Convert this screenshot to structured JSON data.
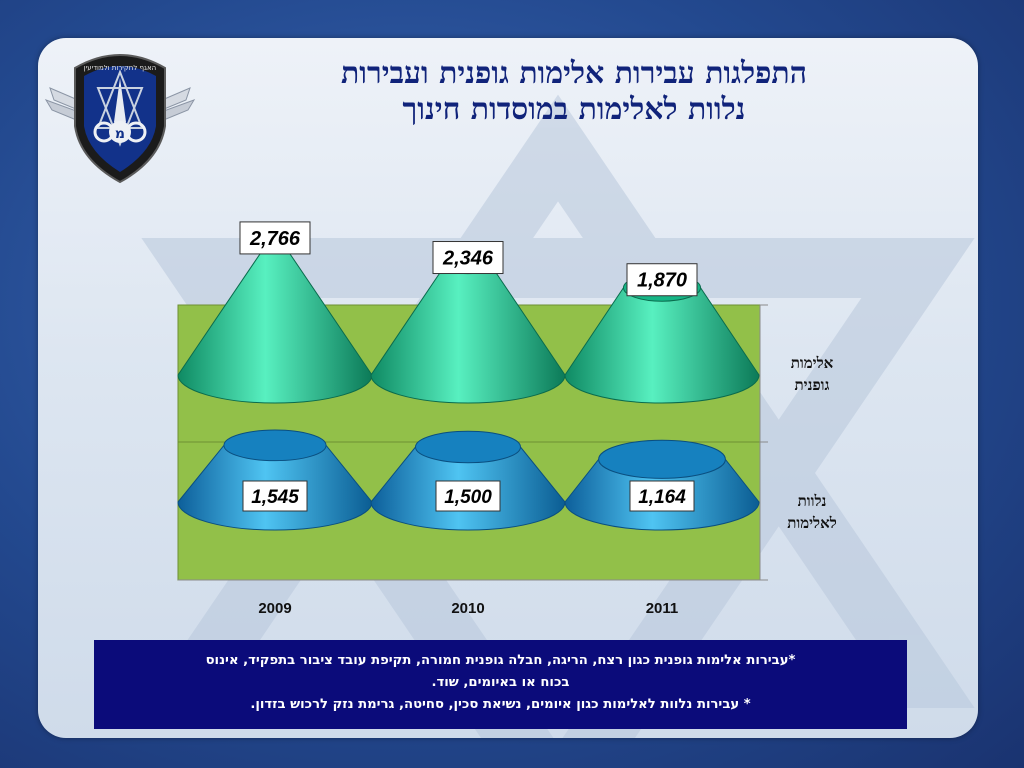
{
  "title": {
    "line1": "התפלגות עבירות אלימות גופנית ועבירות",
    "line2": "נלוות לאלימות במוסדות חינוך"
  },
  "logo": {
    "text": "האגף לחקירות ולמודיעין",
    "monogram": "מ"
  },
  "chart_data": {
    "type": "bar",
    "style": "stacked-cones",
    "categories": [
      "2009",
      "2010",
      "2011"
    ],
    "series": [
      {
        "name": "אלימות גופנית",
        "values": [
          2766,
          2346,
          1870
        ],
        "color": "#1fce9e"
      },
      {
        "name": "נלוות לאלימות",
        "values": [
          1545,
          1500,
          1164
        ],
        "color": "#1aa2dc"
      }
    ],
    "data_labels": {
      "top": [
        "2,766",
        "2,346",
        "1,870"
      ],
      "bottom": [
        "1,545",
        "1,500",
        "1,164"
      ]
    },
    "row_labels": [
      {
        "line1": "אלימות",
        "line2": "גופנית"
      },
      {
        "line1": "נלוות",
        "line2": "לאלימות"
      }
    ],
    "plot_background": "#92c049",
    "grid": false,
    "legend": "right"
  },
  "footnote": {
    "line1": "*עבירות אלימות גופנית כגון רצח, הריגה, חבלה גופנית חמורה, תקיפת עובד ציבור בתפקיד, אינוס",
    "line2": "בכוח או באיומים, שוד.",
    "line3": "* עבירות נלוות לאלימות כגון איומים, נשיאת סכין, סחיטה, גרימת נזק לרכוש בזדון."
  }
}
